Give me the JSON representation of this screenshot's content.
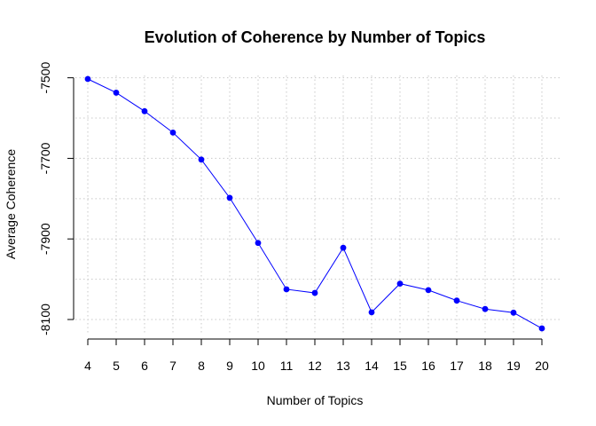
{
  "chart_data": {
    "type": "line",
    "title": "Evolution of Coherence by Number of Topics",
    "xlabel": "Number of Topics",
    "ylabel": "Average Coherence",
    "x": [
      4,
      5,
      6,
      7,
      8,
      9,
      10,
      11,
      12,
      13,
      14,
      15,
      16,
      17,
      18,
      19,
      20
    ],
    "y": [
      -7503,
      -7537,
      -7583,
      -7636,
      -7703,
      -7798,
      -7910,
      -8025,
      -8034,
      -7922,
      -8082,
      -8011,
      -8027,
      -8053,
      -8074,
      -8083,
      -8122
    ],
    "xticks": [
      4,
      5,
      6,
      7,
      8,
      9,
      10,
      11,
      12,
      13,
      14,
      15,
      16,
      17,
      18,
      19,
      20
    ],
    "xtick_labels": [
      "4",
      "5",
      "6",
      "7",
      "8",
      "9",
      "10",
      "11",
      "12",
      "13",
      "14",
      "15",
      "16",
      "17",
      "18",
      "19",
      "20"
    ],
    "yticks": [
      -7500,
      -7700,
      -7900,
      -8100
    ],
    "ytick_labels": [
      "-7500",
      "-7700",
      "-7900",
      "-8100"
    ],
    "xlim": [
      4,
      20
    ],
    "ylim": [
      -8122,
      -7503
    ],
    "grid": true,
    "colors": {
      "series": "#0000ff",
      "grid": "#c8c8c8"
    }
  }
}
